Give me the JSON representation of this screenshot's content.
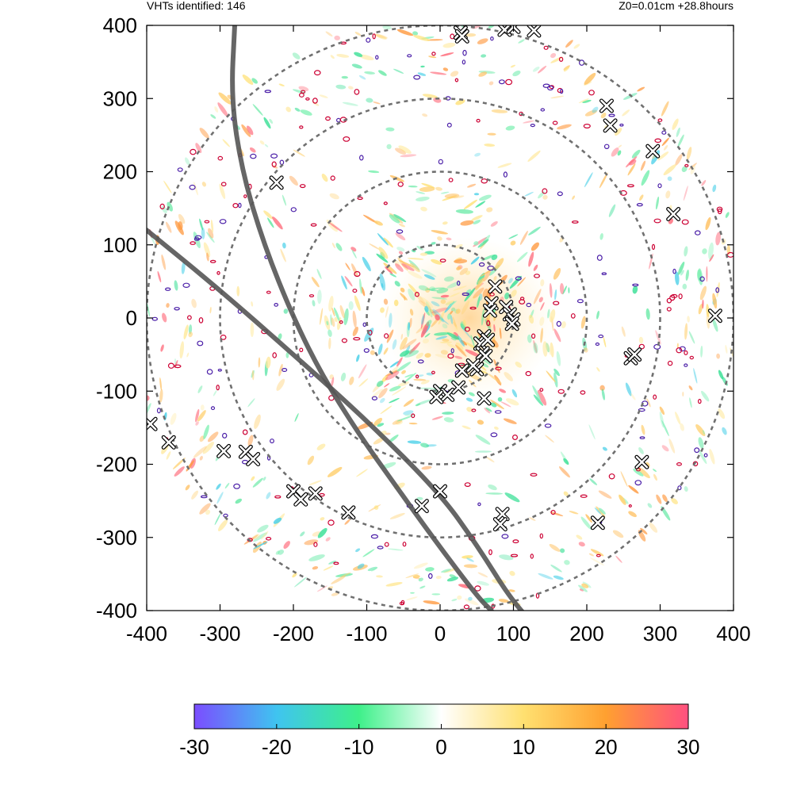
{
  "header": {
    "left_text": "VHTs identified: 146",
    "right_text": "Z0=0.01cm  +28.8hours"
  },
  "chart_data": {
    "type": "scatter",
    "xlim": [
      -400,
      400
    ],
    "ylim": [
      -400,
      400
    ],
    "x_ticks": [
      -400,
      -300,
      -200,
      -100,
      0,
      100,
      200,
      300,
      400
    ],
    "y_ticks": [
      -400,
      -300,
      -200,
      -100,
      0,
      100,
      200,
      300,
      400
    ],
    "x_tick_labels": [
      "-400",
      "-300",
      "-200",
      "-100",
      "0",
      "100",
      "200",
      "300",
      "400"
    ],
    "y_tick_labels": [
      "-400",
      "-300",
      "-200",
      "-100",
      "0",
      "100",
      "200",
      "300",
      "400"
    ],
    "range_rings": [
      100,
      200,
      300,
      400
    ],
    "tracks": [
      {
        "points": [
          [
            -400,
            120
          ],
          [
            -300,
            38
          ],
          [
            -200,
            -50
          ],
          [
            -100,
            -140
          ],
          [
            0,
            -240
          ],
          [
            50,
            -310
          ],
          [
            100,
            -390
          ],
          [
            140,
            -430
          ]
        ]
      },
      {
        "points": [
          [
            -280,
            400
          ],
          [
            -285,
            300
          ],
          [
            -270,
            200
          ],
          [
            -240,
            100
          ],
          [
            -200,
            0
          ],
          [
            -160,
            -80
          ],
          [
            -110,
            -160
          ],
          [
            -60,
            -230
          ],
          [
            -10,
            -300
          ],
          [
            50,
            -380
          ],
          [
            70,
            -400
          ]
        ]
      }
    ],
    "vht_markers": [
      [
        28,
        390
      ],
      [
        30,
        385
      ],
      [
        88,
        394
      ],
      [
        100,
        398
      ],
      [
        128,
        393
      ],
      [
        227,
        290
      ],
      [
        232,
        263
      ],
      [
        290,
        228
      ],
      [
        318,
        142
      ],
      [
        375,
        3
      ],
      [
        75,
        43
      ],
      [
        70,
        20
      ],
      [
        68,
        10
      ],
      [
        90,
        15
      ],
      [
        95,
        5
      ],
      [
        100,
        -2
      ],
      [
        98,
        -8
      ],
      [
        60,
        -25
      ],
      [
        55,
        -35
      ],
      [
        65,
        -30
      ],
      [
        58,
        -48
      ],
      [
        62,
        -52
      ],
      [
        50,
        -70
      ],
      [
        30,
        -72
      ],
      [
        45,
        -65
      ],
      [
        0,
        -100
      ],
      [
        10,
        -105
      ],
      [
        25,
        -95
      ],
      [
        -5,
        -108
      ],
      [
        60,
        -110
      ],
      [
        260,
        -55
      ],
      [
        265,
        -50
      ],
      [
        -395,
        -145
      ],
      [
        -370,
        -170
      ],
      [
        -295,
        -182
      ],
      [
        -265,
        -183
      ],
      [
        -255,
        -193
      ],
      [
        -200,
        -237
      ],
      [
        -190,
        -248
      ],
      [
        -170,
        -240
      ],
      [
        -125,
        -266
      ],
      [
        -25,
        -257
      ],
      [
        0,
        -237
      ],
      [
        85,
        -268
      ],
      [
        82,
        -282
      ],
      [
        215,
        -280
      ],
      [
        275,
        -197
      ],
      [
        -223,
        185
      ]
    ],
    "colorbar": {
      "min": -30,
      "max": 30,
      "ticks": [
        -30,
        -20,
        -10,
        0,
        10,
        20,
        30
      ],
      "tick_labels": [
        "-30",
        "-20",
        "-10",
        "0",
        "10",
        "20",
        "30"
      ],
      "colors": [
        "#7b4dff",
        "#3fc4f0",
        "#3ef08a",
        "#ffffff",
        "#ffe070",
        "#ffa030",
        "#ff5080"
      ]
    },
    "grid": false,
    "legend": "none"
  }
}
